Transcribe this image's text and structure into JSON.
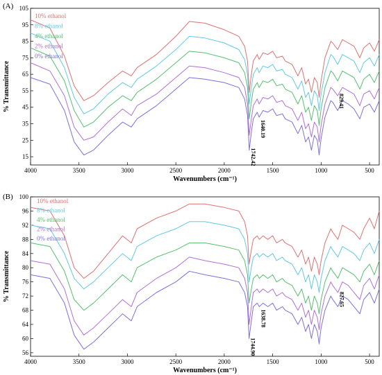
{
  "chart_data": [
    {
      "type": "line",
      "panel_label": "(A)",
      "xlabel": "Wavenumbers (cm⁻¹)",
      "ylabel": "% Transmittance",
      "xlim": [
        4000,
        400
      ],
      "ylim": [
        10,
        105
      ],
      "x_reversed": true,
      "xticks": [
        4000,
        3500,
        3000,
        2500,
        2000,
        1500,
        1000,
        500
      ],
      "yticks": [
        15,
        25,
        35,
        45,
        55,
        65,
        75,
        85,
        95,
        105
      ],
      "legend_placement": "top-left",
      "annotations": [
        {
          "text": "1742.42",
          "x": 1742,
          "y": 22
        },
        {
          "text": "1640.19",
          "x": 1640,
          "y": 39
        },
        {
          "text": "829.41",
          "x": 829,
          "y": 55
        }
      ],
      "x": [
        4000,
        3800,
        3650,
        3550,
        3450,
        3350,
        3200,
        3050,
        2960,
        2900,
        2700,
        2500,
        2360,
        2200,
        2000,
        1850,
        1790,
        1760,
        1742,
        1720,
        1700,
        1660,
        1640,
        1600,
        1550,
        1500,
        1460,
        1400,
        1370,
        1300,
        1240,
        1200,
        1160,
        1130,
        1100,
        1070,
        1040,
        1020,
        1000,
        960,
        900,
        880,
        829,
        780,
        720,
        660,
        600,
        560,
        500,
        450,
        400
      ],
      "series": [
        {
          "name": "0% ethanol",
          "color": "#7c6fe0",
          "values": [
            63,
            59,
            43,
            24,
            16,
            19,
            28,
            36,
            33,
            38,
            46,
            56,
            63,
            62,
            60,
            57,
            50,
            40,
            19,
            30,
            38,
            42,
            39,
            43,
            42,
            44,
            40,
            41,
            38,
            36,
            29,
            34,
            24,
            27,
            19,
            28,
            25,
            16,
            26,
            39,
            49,
            48,
            43,
            49,
            47,
            44,
            38,
            45,
            47,
            42,
            49
          ]
        },
        {
          "name": "2% ethanol",
          "color": "#b06fd8",
          "values": [
            72,
            67,
            52,
            33,
            25,
            27,
            36,
            44,
            40,
            46,
            53,
            63,
            70,
            69,
            66,
            63,
            57,
            47,
            28,
            38,
            46,
            50,
            47,
            51,
            50,
            52,
            48,
            49,
            46,
            44,
            37,
            42,
            32,
            35,
            27,
            36,
            33,
            24,
            34,
            47,
            57,
            56,
            52,
            57,
            55,
            53,
            46,
            53,
            55,
            50,
            57
          ]
        },
        {
          "name": "4% ethanol",
          "color": "#54c06e",
          "values": [
            81,
            76,
            61,
            43,
            33,
            36,
            45,
            52,
            49,
            54,
            62,
            72,
            79,
            78,
            75,
            72,
            66,
            57,
            38,
            48,
            56,
            60,
            57,
            61,
            60,
            62,
            58,
            59,
            56,
            54,
            47,
            52,
            42,
            45,
            37,
            46,
            43,
            34,
            44,
            57,
            67,
            66,
            61,
            67,
            65,
            63,
            56,
            62,
            65,
            60,
            67
          ]
        },
        {
          "name": "8% ethanol",
          "color": "#5fc9e8",
          "values": [
            90,
            85,
            69,
            51,
            41,
            44,
            53,
            60,
            57,
            62,
            70,
            80,
            88,
            87,
            84,
            80,
            74,
            65,
            47,
            57,
            65,
            69,
            66,
            70,
            69,
            71,
            67,
            68,
            65,
            63,
            56,
            61,
            51,
            54,
            46,
            55,
            52,
            43,
            53,
            66,
            77,
            76,
            71,
            77,
            75,
            73,
            66,
            72,
            75,
            70,
            77
          ]
        },
        {
          "name": "10% ethanol",
          "color": "#e07070",
          "values": [
            98,
            93,
            76,
            58,
            49,
            52,
            60,
            67,
            64,
            69,
            77,
            88,
            97,
            96,
            92,
            88,
            82,
            73,
            54,
            65,
            73,
            77,
            74,
            78,
            77,
            79,
            75,
            76,
            73,
            71,
            64,
            69,
            59,
            62,
            54,
            63,
            60,
            51,
            61,
            75,
            85,
            84,
            80,
            86,
            84,
            82,
            75,
            81,
            84,
            79,
            86
          ]
        }
      ]
    },
    {
      "type": "line",
      "panel_label": "(B)",
      "xlabel": "Wavenumbers (cm⁻¹)",
      "ylabel": "% Transmittance",
      "xlim": [
        4000,
        400
      ],
      "ylim": [
        55,
        100
      ],
      "x_reversed": true,
      "xticks": [
        4000,
        3500,
        3000,
        2500,
        2000,
        1500,
        1000,
        500
      ],
      "yticks": [
        56,
        60,
        64,
        68,
        72,
        76,
        80,
        84,
        88,
        92,
        96,
        100
      ],
      "legend_placement": "top-left",
      "annotations": [
        {
          "text": "1744.90",
          "x": 1744,
          "y": 61
        },
        {
          "text": "1638.78",
          "x": 1638,
          "y": 69
        },
        {
          "text": "827.65",
          "x": 827,
          "y": 74
        }
      ],
      "x": [
        4000,
        3800,
        3650,
        3550,
        3450,
        3350,
        3200,
        3050,
        2960,
        2900,
        2700,
        2500,
        2360,
        2200,
        2000,
        1850,
        1790,
        1760,
        1744,
        1720,
        1700,
        1660,
        1638,
        1600,
        1550,
        1500,
        1460,
        1400,
        1370,
        1300,
        1240,
        1200,
        1160,
        1130,
        1100,
        1070,
        1040,
        1020,
        1000,
        960,
        900,
        880,
        827,
        780,
        720,
        660,
        600,
        560,
        500,
        450,
        400
      ],
      "series": [
        {
          "name": "0% ethanol",
          "color": "#7c6fe0",
          "values": [
            78,
            77,
            70,
            61,
            57,
            59,
            63,
            67,
            65,
            69,
            73,
            76,
            79,
            78,
            77,
            76,
            73,
            69,
            60,
            65,
            69,
            70,
            69,
            70,
            69,
            70,
            68,
            69,
            68,
            67,
            64,
            66,
            62,
            64,
            60,
            64,
            62,
            58.5,
            63,
            68,
            72,
            71,
            69,
            72,
            71,
            69,
            67,
            71,
            73,
            70,
            74
          ]
        },
        {
          "name": "2% ethanol",
          "color": "#b06fd8",
          "values": [
            82,
            81,
            74,
            65,
            61,
            63,
            67,
            71,
            69,
            73,
            77,
            80,
            83,
            82,
            81,
            80,
            77,
            73,
            64,
            69,
            73,
            74,
            73,
            74,
            73,
            74,
            72,
            73,
            72,
            71,
            68,
            70,
            66,
            68,
            64,
            68,
            66,
            62.5,
            67,
            72,
            76,
            75,
            73,
            76,
            75,
            73,
            71,
            75,
            77,
            74,
            78
          ]
        },
        {
          "name": "4% ethanol",
          "color": "#54c06e",
          "values": [
            87,
            86,
            79,
            71,
            68,
            70,
            74,
            78,
            76,
            80,
            83,
            85,
            87,
            87,
            86,
            85,
            82,
            78,
            70,
            74,
            77,
            78,
            77,
            78,
            77,
            78,
            76,
            77,
            76,
            75,
            72,
            74,
            70,
            72,
            68,
            72,
            70,
            67,
            71,
            76,
            80,
            79,
            77,
            80,
            79,
            78,
            76,
            79,
            81,
            78,
            82
          ]
        },
        {
          "name": "8% ethanol",
          "color": "#5fc9e8",
          "values": [
            92,
            91,
            84,
            77,
            74,
            76,
            80,
            84,
            82,
            86,
            89,
            91,
            93,
            93,
            92,
            91,
            88,
            84,
            76,
            80,
            83,
            84,
            83,
            84,
            83,
            84,
            82,
            83,
            82,
            81,
            78,
            80,
            76,
            78,
            74,
            78,
            76,
            73,
            77,
            82,
            86,
            85,
            83,
            86,
            85,
            84,
            82,
            85,
            87,
            84,
            88
          ]
        },
        {
          "name": "10% ethanol",
          "color": "#e07070",
          "values": [
            97,
            96,
            89,
            80,
            77,
            79,
            84,
            89,
            87,
            91,
            94,
            96,
            98,
            98,
            97,
            96,
            93,
            89,
            81,
            85,
            88,
            89,
            88,
            89,
            88,
            89,
            87,
            88,
            87,
            86,
            83,
            85,
            81,
            83,
            79,
            83,
            81,
            78,
            82,
            87,
            91,
            90,
            88,
            92,
            91,
            90,
            88,
            91,
            94,
            91,
            96
          ]
        }
      ]
    }
  ]
}
